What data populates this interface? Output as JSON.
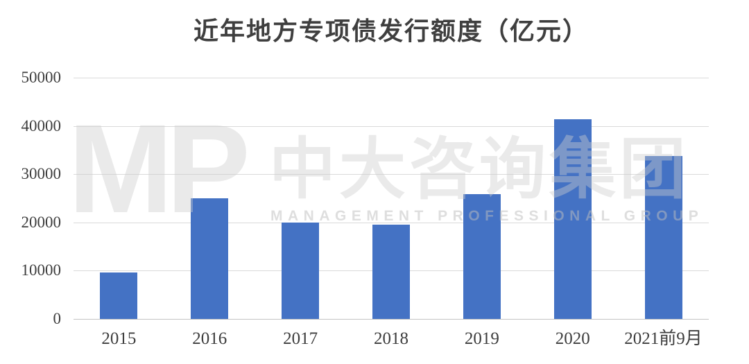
{
  "chart_data": {
    "type": "bar",
    "title": "近年地方专项债发行额度（亿元）",
    "categories": [
      "2015",
      "2016",
      "2017",
      "2018",
      "2019",
      "2020",
      "2021前9月"
    ],
    "values": [
      9600,
      25000,
      20000,
      19500,
      25900,
      41400,
      33700
    ],
    "xlabel": "",
    "ylabel": "",
    "ylim": [
      0,
      50000
    ],
    "yticks": [
      0,
      10000,
      20000,
      30000,
      40000,
      50000
    ],
    "grid": true,
    "legend": "none",
    "bar_color": "#4472C4"
  },
  "watermark": {
    "logo": "MP",
    "company": "中大咨询集团",
    "subtitle": "MANAGEMENT PROFESSIONAL GROUP"
  },
  "colors": {
    "bar": "#4472C4",
    "gridline": "#D9D9D9",
    "axis_line": "#C4C4C4",
    "label_text": "#3D3D3D",
    "title_text": "#3F3F3F",
    "watermark_fill": "#ECECEC"
  }
}
